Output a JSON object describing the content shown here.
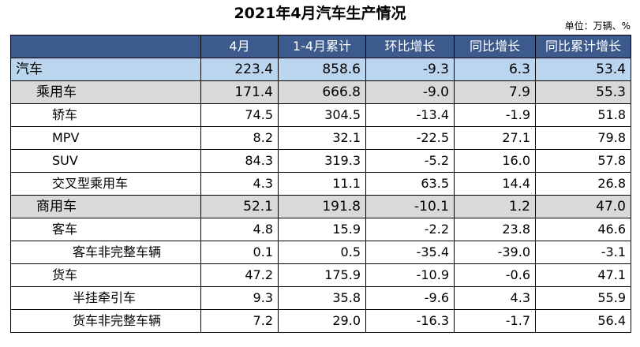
{
  "title": "2021年4月汽车生产情况",
  "unit": "单位：万辆、%",
  "colors": {
    "header_bg": "#3d5a8c",
    "header_text": "#ffffff",
    "total_row_bg": "#bcd5ee",
    "category_row_bg": "#d9d9d9"
  },
  "table": {
    "columns": [
      "",
      "4月",
      "1-4月累计",
      "环比增长",
      "同比增长",
      "同比累计增长"
    ],
    "rows": [
      {
        "level": 0,
        "name": "汽车",
        "values": [
          "223.4",
          "858.6",
          "-9.3",
          "6.3",
          "53.4"
        ]
      },
      {
        "level": 1,
        "name": "乘用车",
        "values": [
          "171.4",
          "666.8",
          "-9.0",
          "7.9",
          "55.3"
        ]
      },
      {
        "level": 2,
        "name": "轿车",
        "values": [
          "74.5",
          "304.5",
          "-13.4",
          "-1.9",
          "51.8"
        ]
      },
      {
        "level": 2,
        "name": "MPV",
        "values": [
          "8.2",
          "32.1",
          "-22.5",
          "27.1",
          "79.8"
        ]
      },
      {
        "level": 2,
        "name": "SUV",
        "values": [
          "84.3",
          "319.3",
          "-5.2",
          "16.0",
          "57.8"
        ]
      },
      {
        "level": 2,
        "name": "交叉型乘用车",
        "values": [
          "4.3",
          "11.1",
          "63.5",
          "14.4",
          "26.8"
        ]
      },
      {
        "level": 1,
        "name": "商用车",
        "values": [
          "52.1",
          "191.8",
          "-10.1",
          "1.2",
          "47.0"
        ]
      },
      {
        "level": 2,
        "name": "客车",
        "values": [
          "4.8",
          "15.9",
          "-2.2",
          "23.8",
          "46.6"
        ]
      },
      {
        "level": 3,
        "name": "客车非完整车辆",
        "values": [
          "0.1",
          "0.5",
          "-35.4",
          "-39.0",
          "-3.1"
        ]
      },
      {
        "level": 2,
        "name": "货车",
        "values": [
          "47.2",
          "175.9",
          "-10.9",
          "-0.6",
          "47.1"
        ]
      },
      {
        "level": 3,
        "name": "半挂牵引车",
        "values": [
          "9.3",
          "35.8",
          "-9.6",
          "4.3",
          "55.9"
        ]
      },
      {
        "level": 3,
        "name": "货车非完整车辆",
        "values": [
          "7.2",
          "29.0",
          "-16.3",
          "-1.7",
          "56.4"
        ]
      }
    ]
  }
}
